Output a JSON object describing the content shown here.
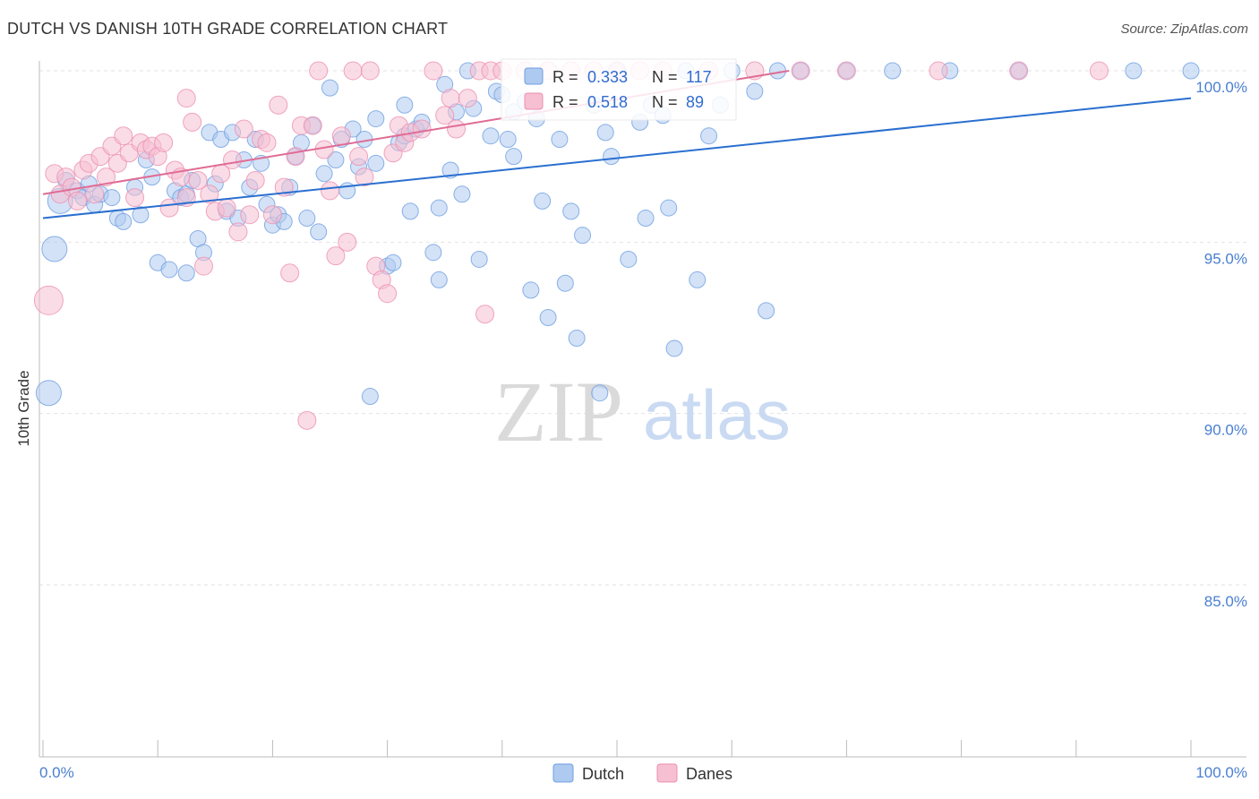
{
  "chart_data": {
    "type": "scatter",
    "title": "DUTCH VS DANISH 10TH GRADE CORRELATION CHART",
    "source": "Source: ZipAtlas.com",
    "xlabel": "",
    "ylabel": "10th Grade",
    "xlim": [
      0,
      100
    ],
    "ylim": [
      80.5,
      100.8
    ],
    "x_tick_labels": [
      "0.0%",
      "100.0%"
    ],
    "y_ticks": [
      {
        "value": 100,
        "label": "100.0%"
      },
      {
        "value": 95,
        "label": "95.0%"
      },
      {
        "value": 90,
        "label": "90.0%"
      },
      {
        "value": 85,
        "label": "85.0%"
      }
    ],
    "watermark": {
      "zip": "ZIP",
      "atlas": "atlas"
    },
    "series": [
      {
        "name": "Dutch",
        "color": "#6f9fe0",
        "fill": "#aecaf0",
        "line_color": "#2a6fd0",
        "R": "0.333",
        "N": "117",
        "trend": {
          "x0": 0,
          "y0": 95.7,
          "x1": 100,
          "y1": 99.2
        },
        "points": [
          [
            1.5,
            96.2,
            14
          ],
          [
            1,
            94.8,
            14
          ],
          [
            0.5,
            90.6,
            14
          ],
          [
            2,
            96.8,
            9
          ],
          [
            3,
            96.5,
            9
          ],
          [
            3.5,
            96.3,
            9
          ],
          [
            4,
            96.7,
            9
          ],
          [
            4.5,
            96.1,
            9
          ],
          [
            5,
            96.4,
            9
          ],
          [
            6,
            96.3,
            9
          ],
          [
            6.5,
            95.7,
            9
          ],
          [
            7,
            95.6,
            9
          ],
          [
            8,
            96.6,
            9
          ],
          [
            8.5,
            95.8,
            9
          ],
          [
            9,
            97.4,
            9
          ],
          [
            9.5,
            96.9,
            9
          ],
          [
            10,
            94.4,
            9
          ],
          [
            11,
            94.2,
            9
          ],
          [
            11.5,
            96.5,
            9
          ],
          [
            12,
            96.3,
            9
          ],
          [
            12.5,
            96.4,
            9
          ],
          [
            12.5,
            94.1,
            9
          ],
          [
            13,
            96.8,
            9
          ],
          [
            13.5,
            95.1,
            9
          ],
          [
            14,
            94.7,
            9
          ],
          [
            14.5,
            98.2,
            9
          ],
          [
            15,
            96.7,
            9
          ],
          [
            15.5,
            98.0,
            9
          ],
          [
            16,
            95.9,
            9
          ],
          [
            16.5,
            98.2,
            9
          ],
          [
            17,
            95.7,
            9
          ],
          [
            17.5,
            97.4,
            9
          ],
          [
            18,
            96.6,
            9
          ],
          [
            18.5,
            98.0,
            9
          ],
          [
            19,
            97.3,
            9
          ],
          [
            19.5,
            96.1,
            9
          ],
          [
            20,
            95.5,
            9
          ],
          [
            20.5,
            95.8,
            9
          ],
          [
            21,
            95.6,
            9
          ],
          [
            21.5,
            96.6,
            9
          ],
          [
            22,
            97.5,
            9
          ],
          [
            22.5,
            97.9,
            9
          ],
          [
            23,
            95.7,
            9
          ],
          [
            23.5,
            98.4,
            9
          ],
          [
            24,
            95.3,
            9
          ],
          [
            24.5,
            97.0,
            9
          ],
          [
            25,
            99.5,
            9
          ],
          [
            25.5,
            97.4,
            9
          ],
          [
            26,
            98.0,
            9
          ],
          [
            26.5,
            96.5,
            9
          ],
          [
            27,
            98.3,
            9
          ],
          [
            27.5,
            97.2,
            9
          ],
          [
            28,
            98.0,
            9
          ],
          [
            28.5,
            90.5,
            9
          ],
          [
            29,
            97.3,
            9
          ],
          [
            30,
            94.3,
            9
          ],
          [
            30.5,
            94.4,
            9
          ],
          [
            31,
            97.9,
            9
          ],
          [
            31.5,
            98.1,
            9
          ],
          [
            32,
            95.9,
            9
          ],
          [
            32.5,
            98.3,
            9
          ],
          [
            33,
            98.5,
            9
          ],
          [
            34,
            94.7,
            9
          ],
          [
            34.5,
            96.0,
            9
          ],
          [
            34.5,
            93.9,
            9
          ],
          [
            35,
            99.6,
            9
          ],
          [
            35.5,
            97.1,
            9
          ],
          [
            36,
            98.8,
            9
          ],
          [
            36.5,
            96.4,
            9
          ],
          [
            37,
            100,
            9
          ],
          [
            37.5,
            98.9,
            9
          ],
          [
            38,
            94.5,
            9
          ],
          [
            39,
            98.1,
            9
          ],
          [
            39.5,
            99.4,
            9
          ],
          [
            40,
            99.3,
            9
          ],
          [
            40.5,
            98.0,
            9
          ],
          [
            41,
            97.5,
            9
          ],
          [
            42,
            99.1,
            9
          ],
          [
            42.5,
            93.6,
            9
          ],
          [
            43,
            98.6,
            9
          ],
          [
            43.5,
            96.2,
            9
          ],
          [
            44,
            92.8,
            9
          ],
          [
            45,
            98.0,
            9
          ],
          [
            45.5,
            93.8,
            9
          ],
          [
            46,
            95.9,
            9
          ],
          [
            46.5,
            92.2,
            9
          ],
          [
            47,
            95.2,
            9
          ],
          [
            48,
            99.0,
            9
          ],
          [
            48.5,
            90.6,
            9
          ],
          [
            49,
            98.2,
            9
          ],
          [
            49.5,
            97.5,
            9
          ],
          [
            50,
            100,
            9
          ],
          [
            51,
            94.5,
            9
          ],
          [
            52,
            98.5,
            9
          ],
          [
            52.5,
            95.7,
            9
          ],
          [
            53,
            99.0,
            9
          ],
          [
            54,
            98.7,
            9
          ],
          [
            54.5,
            96.0,
            9
          ],
          [
            55,
            91.9,
            9
          ],
          [
            56,
            100,
            9
          ],
          [
            57,
            93.9,
            9
          ],
          [
            58,
            98.1,
            9
          ],
          [
            59,
            99.0,
            9
          ],
          [
            60,
            100,
            9
          ],
          [
            62,
            99.4,
            9
          ],
          [
            63,
            93.0,
            9
          ],
          [
            64,
            100,
            9
          ],
          [
            66,
            100,
            9
          ],
          [
            70,
            100,
            9
          ],
          [
            74,
            100,
            9
          ],
          [
            79,
            100,
            9
          ],
          [
            85,
            100,
            9
          ],
          [
            95,
            100,
            9
          ],
          [
            100,
            100,
            9
          ],
          [
            41,
            98.8,
            9
          ],
          [
            29,
            98.6,
            9
          ],
          [
            31.5,
            99.0,
            9
          ]
        ]
      },
      {
        "name": "Danes",
        "color": "#ec8fb0",
        "fill": "#f6bfd2",
        "line_color": "#e06c95",
        "R": "0.518",
        "N": "89",
        "trend": {
          "x0": 0,
          "y0": 96.4,
          "x1": 65,
          "y1": 100
        },
        "points": [
          [
            0.5,
            93.3,
            16
          ],
          [
            1,
            97.0,
            10
          ],
          [
            1.5,
            96.4,
            10
          ],
          [
            2,
            96.9,
            10
          ],
          [
            2.5,
            96.6,
            10
          ],
          [
            3,
            96.2,
            10
          ],
          [
            3.5,
            97.1,
            10
          ],
          [
            4,
            97.3,
            10
          ],
          [
            4.5,
            96.4,
            10
          ],
          [
            5,
            97.5,
            10
          ],
          [
            5.5,
            96.9,
            10
          ],
          [
            6,
            97.8,
            10
          ],
          [
            6.5,
            97.3,
            10
          ],
          [
            7,
            98.1,
            10
          ],
          [
            7.5,
            97.6,
            10
          ],
          [
            8,
            96.3,
            10
          ],
          [
            8.5,
            97.9,
            10
          ],
          [
            9,
            97.7,
            10
          ],
          [
            9.5,
            97.8,
            10
          ],
          [
            10,
            97.5,
            10
          ],
          [
            10.5,
            97.9,
            10
          ],
          [
            11,
            96.0,
            10
          ],
          [
            11.5,
            97.1,
            10
          ],
          [
            12,
            96.9,
            10
          ],
          [
            12.5,
            96.3,
            10
          ],
          [
            12.5,
            99.2,
            10
          ],
          [
            13,
            98.5,
            10
          ],
          [
            13.5,
            96.8,
            10
          ],
          [
            14,
            94.3,
            10
          ],
          [
            14.5,
            96.4,
            10
          ],
          [
            15,
            95.9,
            10
          ],
          [
            15.5,
            97.0,
            10
          ],
          [
            16,
            96.0,
            10
          ],
          [
            16.5,
            97.4,
            10
          ],
          [
            17,
            95.3,
            10
          ],
          [
            17.5,
            98.3,
            10
          ],
          [
            18,
            95.8,
            10
          ],
          [
            18.5,
            96.8,
            10
          ],
          [
            19,
            98.0,
            10
          ],
          [
            19.5,
            97.9,
            10
          ],
          [
            20,
            95.8,
            10
          ],
          [
            20.5,
            99.0,
            10
          ],
          [
            21,
            96.6,
            10
          ],
          [
            21.5,
            94.1,
            10
          ],
          [
            22,
            97.5,
            10
          ],
          [
            22.5,
            98.4,
            10
          ],
          [
            23,
            89.8,
            10
          ],
          [
            23.5,
            98.4,
            10
          ],
          [
            24,
            100,
            10
          ],
          [
            24.5,
            97.7,
            10
          ],
          [
            25,
            96.5,
            10
          ],
          [
            25.5,
            94.6,
            10
          ],
          [
            26,
            98.1,
            10
          ],
          [
            26.5,
            95.0,
            10
          ],
          [
            27,
            100,
            10
          ],
          [
            27.5,
            97.5,
            10
          ],
          [
            28,
            96.9,
            10
          ],
          [
            28.5,
            100,
            10
          ],
          [
            29,
            94.3,
            10
          ],
          [
            29.5,
            93.9,
            10
          ],
          [
            30,
            93.5,
            10
          ],
          [
            30.5,
            97.6,
            10
          ],
          [
            31,
            98.4,
            10
          ],
          [
            31.5,
            97.9,
            10
          ],
          [
            32,
            98.2,
            10
          ],
          [
            33,
            98.3,
            10
          ],
          [
            34,
            100,
            10
          ],
          [
            35,
            98.7,
            10
          ],
          [
            35.5,
            99.2,
            10
          ],
          [
            36,
            98.3,
            10
          ],
          [
            37,
            99.2,
            10
          ],
          [
            38,
            100,
            10
          ],
          [
            38.5,
            92.9,
            10
          ],
          [
            39,
            100,
            10
          ],
          [
            40,
            100,
            10
          ],
          [
            42,
            100,
            10
          ],
          [
            44,
            100,
            10
          ],
          [
            46,
            100,
            10
          ],
          [
            48,
            100,
            10
          ],
          [
            50,
            100,
            10
          ],
          [
            52,
            100,
            10
          ],
          [
            54,
            100,
            10
          ],
          [
            58,
            100,
            10
          ],
          [
            62,
            100,
            10
          ],
          [
            66,
            100,
            10
          ],
          [
            70,
            100,
            10
          ],
          [
            78,
            100,
            10
          ],
          [
            85,
            100,
            10
          ],
          [
            92,
            100,
            10
          ]
        ]
      }
    ],
    "legend": {
      "r_label": "R =",
      "n_label": "N ="
    }
  }
}
